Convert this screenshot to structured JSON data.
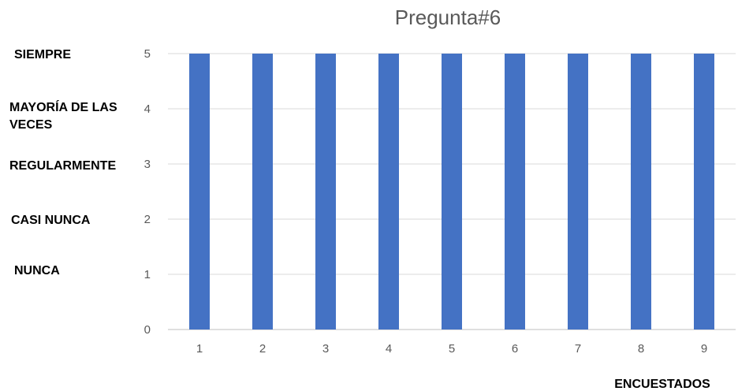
{
  "chart_data": {
    "type": "bar",
    "title": "Pregunta#6",
    "xlabel": "ENCUESTADOS",
    "ylabel": "",
    "categories": [
      "1",
      "2",
      "3",
      "4",
      "5",
      "6",
      "7",
      "8",
      "9"
    ],
    "values": [
      5,
      5,
      5,
      5,
      5,
      5,
      5,
      5,
      5
    ],
    "ylim": [
      0,
      5
    ],
    "yticks": [
      "0",
      "1",
      "2",
      "3",
      "4",
      "5"
    ],
    "grid": true,
    "legend": "none",
    "bar_color": "#4472C4",
    "scale_labels": [
      {
        "value": 5,
        "lines": [
          "SIEMPRE"
        ]
      },
      {
        "value": 4,
        "lines": [
          "MAYORÍA DE LAS",
          "VECES"
        ]
      },
      {
        "value": 3,
        "lines": [
          "REGULARMENTE"
        ]
      },
      {
        "value": 2,
        "lines": [
          "CASI NUNCA"
        ]
      },
      {
        "value": 1,
        "lines": [
          "NUNCA"
        ]
      }
    ]
  }
}
